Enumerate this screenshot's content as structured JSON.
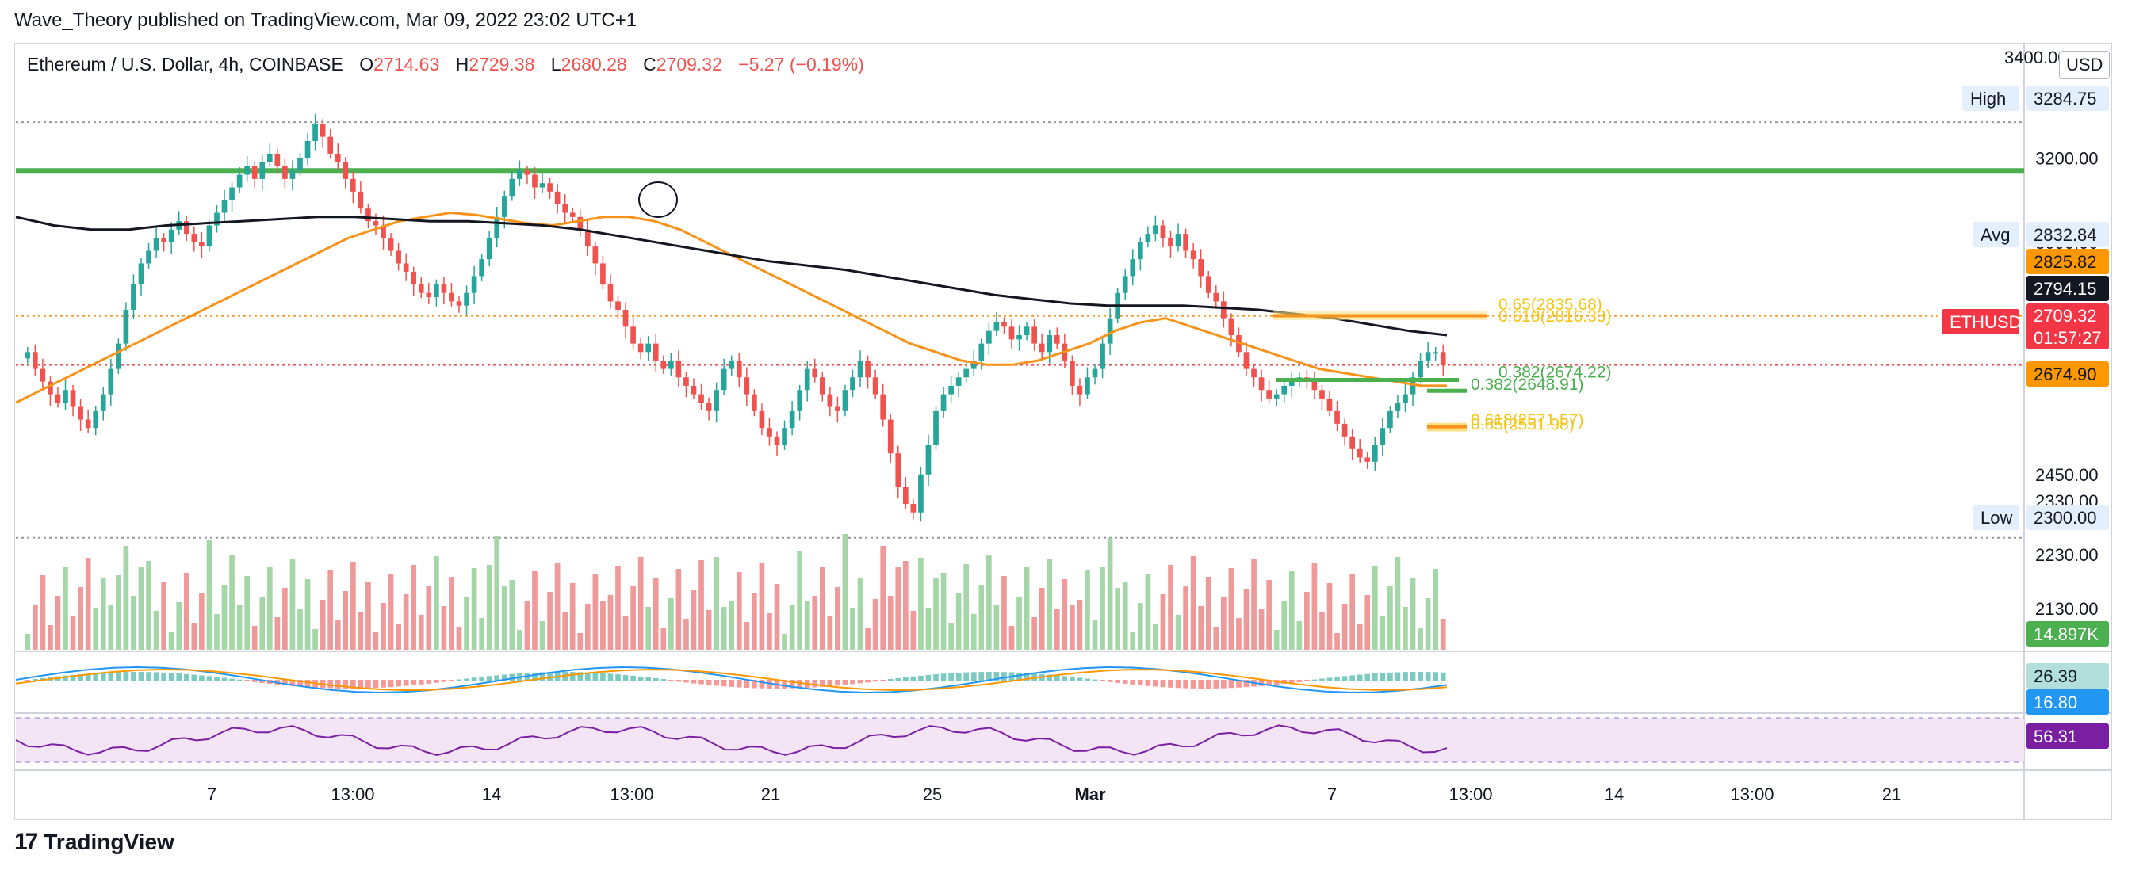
{
  "caption": "Wave_Theory published on TradingView.com, Mar 09, 2022 23:02 UTC+1",
  "legend": {
    "symbol": "Ethereum / U.S. Dollar, 4h, COINBASE",
    "o_label": "O",
    "o": "2714.63",
    "h_label": "H",
    "h": "2729.38",
    "l_label": "L",
    "l": "2680.28",
    "c_label": "C",
    "c": "2709.32",
    "change": "−5.27 (−0.19%)"
  },
  "currency_button": "USD",
  "logo_text": "TradingView",
  "colors": {
    "up": "#26a69a",
    "down": "#ef5350",
    "green_line": "#4caf50",
    "ema_orange": "#f7931a",
    "sma_black": "#131722",
    "rsi": "#7b1fa2",
    "volume_up": "#a5d6a7",
    "volume_down": "#ef9a9a"
  },
  "chart_data": {
    "type": "candlestick",
    "symbol": "ETHUSD",
    "timeframe": "4h",
    "price_axis": {
      "ticks": [
        "3200.00",
        "3000.00",
        "2450.00",
        "2230.00",
        "2130.00"
      ],
      "partial_ticks": [
        "3400.00",
        "2330.00"
      ]
    },
    "price_labels": [
      {
        "name": "High",
        "value": "3284.75",
        "style": "grey"
      },
      {
        "name": "",
        "value": "3200.00",
        "style": "axis"
      },
      {
        "name": "Avg",
        "value": "2832.84",
        "style": "grey"
      },
      {
        "name": "",
        "value": "2825.82",
        "style": "orange"
      },
      {
        "name": "",
        "value": "2794.15",
        "style": "black"
      },
      {
        "name": "ETHUSD",
        "value": "2709.32",
        "countdown": "01:57:27",
        "style": "red"
      },
      {
        "name": "",
        "value": "2674.90",
        "style": "orange"
      },
      {
        "name": "Low",
        "value": "2300.00",
        "style": "grey"
      },
      {
        "name": "",
        "value": "14.897K",
        "style": "green"
      },
      {
        "name": "",
        "value": "26.39",
        "style": "teal"
      },
      {
        "name": "",
        "value": "16.80",
        "style": "blue"
      },
      {
        "name": "",
        "value": "56.31",
        "style": "purple"
      }
    ],
    "x_ticks": [
      "7",
      "13:00",
      "14",
      "13:00",
      "21",
      "25",
      "Mar",
      "7",
      "13:00",
      "14",
      "13:00",
      "21"
    ],
    "fib_labels": [
      {
        "text": "0.65(2835.68)",
        "color": "#f5c518"
      },
      {
        "text": "0.618(2816.33)",
        "color": "#f5c518"
      },
      {
        "text": "0.382(2674.22)",
        "color": "#4caf50"
      },
      {
        "text": "0.382(2648.91)",
        "color": "#4caf50"
      },
      {
        "text": "0.618(2571.57)",
        "color": "#f5c518"
      },
      {
        "text": "0.65(2551.98)",
        "color": "#f5c518"
      }
    ],
    "horizontal_levels": [
      {
        "price": 3284.75,
        "style": "dotted",
        "color": "#9598a1"
      },
      {
        "price": 3170,
        "style": "solid",
        "color": "#4caf50"
      },
      {
        "price": 2825.82,
        "style": "dotted",
        "color": "#f7931a"
      },
      {
        "price": 2709.32,
        "style": "dotted",
        "color": "#ef5350"
      },
      {
        "price": 2300,
        "style": "dotted",
        "color": "#9598a1"
      }
    ],
    "closes": [
      2740,
      2700,
      2670,
      2640,
      2620,
      2650,
      2610,
      2580,
      2560,
      2600,
      2640,
      2700,
      2760,
      2840,
      2900,
      2950,
      2980,
      3010,
      3000,
      3030,
      3050,
      3020,
      3000,
      2990,
      3040,
      3070,
      3100,
      3130,
      3160,
      3180,
      3150,
      3190,
      3210,
      3180,
      3150,
      3170,
      3200,
      3240,
      3280,
      3250,
      3210,
      3190,
      3150,
      3120,
      3080,
      3050,
      3040,
      3010,
      2980,
      2950,
      2930,
      2900,
      2880,
      2870,
      2900,
      2880,
      2860,
      2850,
      2880,
      2920,
      2960,
      3010,
      3060,
      3110,
      3150,
      3170,
      3160,
      3130,
      3140,
      3120,
      3090,
      3070,
      3060,
      3030,
      2990,
      2950,
      2900,
      2860,
      2840,
      2800,
      2760,
      2740,
      2760,
      2720,
      2700,
      2720,
      2680,
      2660,
      2640,
      2620,
      2600,
      2650,
      2700,
      2720,
      2680,
      2640,
      2600,
      2560,
      2540,
      2520,
      2560,
      2600,
      2650,
      2700,
      2680,
      2640,
      2610,
      2600,
      2650,
      2680,
      2720,
      2680,
      2640,
      2580,
      2500,
      2420,
      2380,
      2360,
      2450,
      2520,
      2600,
      2640,
      2660,
      2680,
      2700,
      2720,
      2760,
      2790,
      2810,
      2800,
      2770,
      2780,
      2800,
      2760,
      2740,
      2780,
      2760,
      2720,
      2660,
      2640,
      2680,
      2700,
      2760,
      2820,
      2880,
      2920,
      2960,
      3000,
      3020,
      3040,
      3010,
      2990,
      3020,
      2980,
      2960,
      2920,
      2880,
      2860,
      2820,
      2780,
      2740,
      2700,
      2680,
      2650,
      2630,
      2640,
      2660,
      2670,
      2680,
      2670,
      2650,
      2630,
      2600,
      2570,
      2540,
      2510,
      2490,
      2480,
      2520,
      2560,
      2600,
      2620,
      2640,
      2680,
      2720,
      2740,
      2740,
      2709
    ],
    "ema": [
      2620,
      2650,
      2680,
      2710,
      2740,
      2770,
      2800,
      2830,
      2860,
      2890,
      2920,
      2950,
      2980,
      3010,
      3030,
      3050,
      3060,
      3070,
      3065,
      3055,
      3045,
      3040,
      3050,
      3060,
      3060,
      3050,
      3030,
      3000,
      2970,
      2940,
      2910,
      2880,
      2850,
      2820,
      2790,
      2760,
      2740,
      2720,
      2710,
      2710,
      2720,
      2740,
      2760,
      2790,
      2810,
      2820,
      2800,
      2780,
      2760,
      2740,
      2720,
      2700,
      2690,
      2680,
      2670,
      2660,
      2660
    ],
    "sma200": [
      3060,
      3040,
      3030,
      3030,
      3040,
      3045,
      3050,
      3055,
      3060,
      3060,
      3055,
      3050,
      3050,
      3045,
      3040,
      3030,
      3015,
      3000,
      2985,
      2970,
      2955,
      2945,
      2935,
      2920,
      2905,
      2890,
      2875,
      2865,
      2855,
      2850,
      2850,
      2850,
      2845,
      2840,
      2830,
      2820,
      2805,
      2790,
      2780
    ],
    "rsi_value": "56.31",
    "macd_value": "26.39",
    "signal_value": "16.80",
    "volume_last": "14.897K"
  }
}
